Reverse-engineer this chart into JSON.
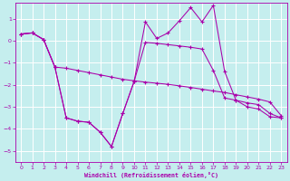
{
  "xlabel": "Windchill (Refroidissement éolien,°C)",
  "xlim": [
    -0.5,
    23.5
  ],
  "ylim": [
    -5.5,
    1.7
  ],
  "yticks": [
    1,
    0,
    -1,
    -2,
    -3,
    -4,
    -5
  ],
  "xticks": [
    0,
    1,
    2,
    3,
    4,
    5,
    6,
    7,
    8,
    9,
    10,
    11,
    12,
    13,
    14,
    15,
    16,
    17,
    18,
    19,
    20,
    21,
    22,
    23
  ],
  "bg_color": "#c5eeee",
  "grid_color": "#ffffff",
  "line_color": "#aa00aa",
  "line1_x": [
    0,
    1,
    2,
    3,
    4,
    5,
    6,
    7,
    8,
    9,
    10,
    11,
    12,
    13,
    14,
    15,
    16,
    17,
    18,
    19,
    20,
    21,
    22,
    23
  ],
  "line1_y": [
    0.3,
    0.35,
    0.05,
    -1.2,
    -3.5,
    -3.65,
    -3.7,
    -4.15,
    -4.8,
    -3.3,
    -1.85,
    0.85,
    0.1,
    0.35,
    0.9,
    1.5,
    0.85,
    1.6,
    -1.4,
    -2.7,
    -3.0,
    -3.1,
    -3.45,
    -3.5
  ],
  "line2_x": [
    0,
    1,
    2,
    3,
    4,
    5,
    6,
    7,
    8,
    9,
    10,
    11,
    12,
    13,
    14,
    15,
    16,
    17,
    18,
    19,
    20,
    21,
    22,
    23
  ],
  "line2_y": [
    0.3,
    0.35,
    0.05,
    -1.2,
    -1.25,
    -1.35,
    -1.45,
    -1.55,
    -1.65,
    -1.75,
    -1.82,
    -1.88,
    -1.93,
    -1.98,
    -2.05,
    -2.12,
    -2.2,
    -2.28,
    -2.35,
    -2.45,
    -2.55,
    -2.65,
    -2.78,
    -3.4
  ],
  "line3_x": [
    0,
    1,
    2,
    3,
    4,
    5,
    6,
    7,
    8,
    9,
    10,
    11,
    12,
    13,
    14,
    15,
    16,
    17,
    18,
    19,
    20,
    21,
    22,
    23
  ],
  "line3_y": [
    0.3,
    0.35,
    0.05,
    -1.2,
    -3.5,
    -3.65,
    -3.7,
    -4.15,
    -4.8,
    -3.3,
    -1.85,
    -0.08,
    -0.12,
    -0.18,
    -0.24,
    -0.3,
    -0.38,
    -1.35,
    -2.6,
    -2.7,
    -2.82,
    -2.9,
    -3.3,
    -3.5
  ]
}
